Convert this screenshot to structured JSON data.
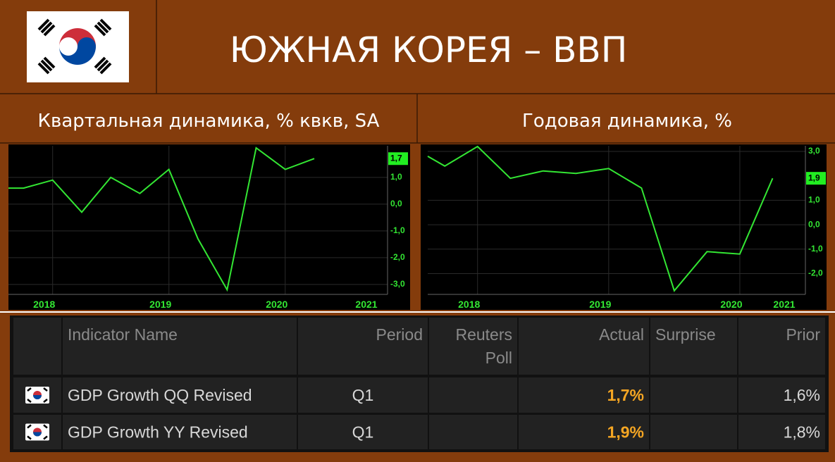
{
  "header": {
    "title": "ЮЖНАЯ КОРЕЯ – ВВП"
  },
  "chart_data": [
    {
      "type": "line",
      "title": "Квартальная динамика, % кв‍кв, SA",
      "x": [
        2017.62,
        2017.75,
        2018,
        2018.25,
        2018.5,
        2018.75,
        2019,
        2019.25,
        2019.5,
        2019.75,
        2020,
        2020.25
      ],
      "series": [
        {
          "color": "#33e633",
          "values": [
            0.6,
            0.6,
            0.9,
            -0.3,
            1.0,
            0.4,
            1.3,
            -1.3,
            -3.2,
            2.1,
            1.3,
            1.7
          ]
        }
      ],
      "last_value_label": "1,7",
      "xlim": [
        2017.62,
        2020.88
      ],
      "xticks": [
        {
          "value": 2018,
          "label": "2018"
        },
        {
          "value": 2019,
          "label": "2019"
        },
        {
          "value": 2020,
          "label": "2020"
        },
        {
          "value": 2021,
          "label": "2021"
        }
      ],
      "ylim": [
        -3.37,
        2.18
      ],
      "yticks": [
        {
          "value": -3,
          "label": "-3,0"
        },
        {
          "value": -2,
          "label": "-2,0"
        },
        {
          "value": -1,
          "label": "-1,0"
        },
        {
          "value": 0,
          "label": "0,0"
        },
        {
          "value": 1,
          "label": "1,0"
        }
      ],
      "grid": true
    },
    {
      "type": "line",
      "title": "Годовая динамика, %",
      "x": [
        2017.62,
        2017.75,
        2018,
        2018.25,
        2018.5,
        2018.75,
        2019,
        2019.25,
        2019.5,
        2019.75,
        2020,
        2020.25
      ],
      "series": [
        {
          "color": "#33e633",
          "values": [
            2.8,
            2.4,
            3.2,
            1.9,
            2.2,
            2.1,
            2.3,
            1.5,
            -2.7,
            -1.1,
            -1.2,
            1.9
          ]
        }
      ],
      "last_value_label": "1,9",
      "xlim": [
        2017.62,
        2020.5
      ],
      "xticks": [
        {
          "value": 2018,
          "label": "2018"
        },
        {
          "value": 2019,
          "label": "2019"
        },
        {
          "value": 2020,
          "label": "2020"
        },
        {
          "value": 2021,
          "label": "2021"
        }
      ],
      "ylim": [
        -2.85,
        3.23
      ],
      "yticks": [
        {
          "value": -2,
          "label": "-2,0"
        },
        {
          "value": -1,
          "label": "-1,0"
        },
        {
          "value": 0,
          "label": "0,0"
        },
        {
          "value": 1,
          "label": "1,0"
        },
        {
          "value": 3,
          "label": "3,0"
        }
      ],
      "grid": true
    }
  ],
  "table": {
    "columns": [
      "Indicator Name",
      "Period",
      "Reuters Poll",
      "Actual",
      "Surprise",
      "Prior"
    ],
    "rows": [
      {
        "cells": [
          "GDP Growth QQ Revised",
          "Q1",
          null,
          "1,7%",
          null,
          "1,6%"
        ]
      },
      {
        "cells": [
          "GDP Growth YY Revised",
          "Q1",
          null,
          "1,9%",
          null,
          "1,8%"
        ]
      }
    ]
  }
}
